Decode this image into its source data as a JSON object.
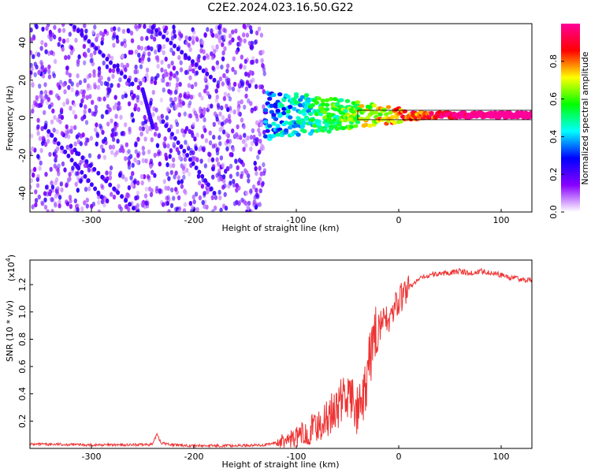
{
  "title": "C2E2.2024.023.16.50.G22",
  "chart_data": [
    {
      "type": "heatmap",
      "xlabel": "Height of straight line (km)",
      "ylabel": "Frequency (Hz)",
      "xlim": [
        -360,
        130
      ],
      "ylim": [
        -50,
        50
      ],
      "xticks": [
        -300,
        -200,
        -100,
        0,
        100
      ],
      "yticks": [
        -40,
        -20,
        0,
        20,
        40
      ],
      "colorbar": {
        "label": "Normalized spectral amplitude",
        "range": [
          0,
          1
        ],
        "ticks": [
          "0.0",
          "0.2",
          "0.4",
          "0.6",
          "0.8"
        ],
        "colors": [
          "#ffffff",
          "#8800ff",
          "#0000ff",
          "#00ffff",
          "#00ff00",
          "#ffff00",
          "#ff0000",
          "#ff0099"
        ]
      },
      "features": {
        "noise_region_x": [
          -360,
          -130
        ],
        "signal_band_center_hz": 1.5,
        "signal_band_start_x": -130
      }
    },
    {
      "type": "line",
      "xlabel": "Height of straight line (km)",
      "ylabel": "SNR (10 * v/v)",
      "y_multiplier_label": "(x10",
      "y_multiplier_exp": "4",
      "y_multiplier_close": ")",
      "xlim": [
        -360,
        130
      ],
      "ylim": [
        0,
        1.38
      ],
      "xticks": [
        -300,
        -200,
        -100,
        0,
        100
      ],
      "yticks": [
        "0.2",
        "0.4",
        "0.6",
        "0.8",
        "1.0",
        "1.2"
      ],
      "color": "#ee3333",
      "series": [
        {
          "x": [
            -360,
            -330,
            -300,
            -260,
            -240,
            -236,
            -232,
            -220,
            -200,
            -160,
            -130,
            -115,
            -100,
            -90,
            -80,
            -70,
            -60,
            -52,
            -45,
            -40,
            -35,
            -30,
            -25,
            -20,
            -15,
            -10,
            -5,
            0,
            5,
            10,
            20,
            30,
            40,
            50,
            60,
            70,
            80,
            90,
            100,
            110,
            120,
            130
          ],
          "y": [
            0.03,
            0.03,
            0.025,
            0.025,
            0.03,
            0.11,
            0.04,
            0.025,
            0.02,
            0.02,
            0.025,
            0.05,
            0.08,
            0.12,
            0.16,
            0.22,
            0.3,
            0.4,
            0.34,
            0.26,
            0.3,
            0.55,
            0.8,
            0.9,
            0.92,
            0.95,
            1.0,
            1.08,
            1.12,
            1.18,
            1.24,
            1.27,
            1.28,
            1.29,
            1.3,
            1.28,
            1.3,
            1.29,
            1.27,
            1.25,
            1.24,
            1.23
          ]
        }
      ]
    }
  ]
}
